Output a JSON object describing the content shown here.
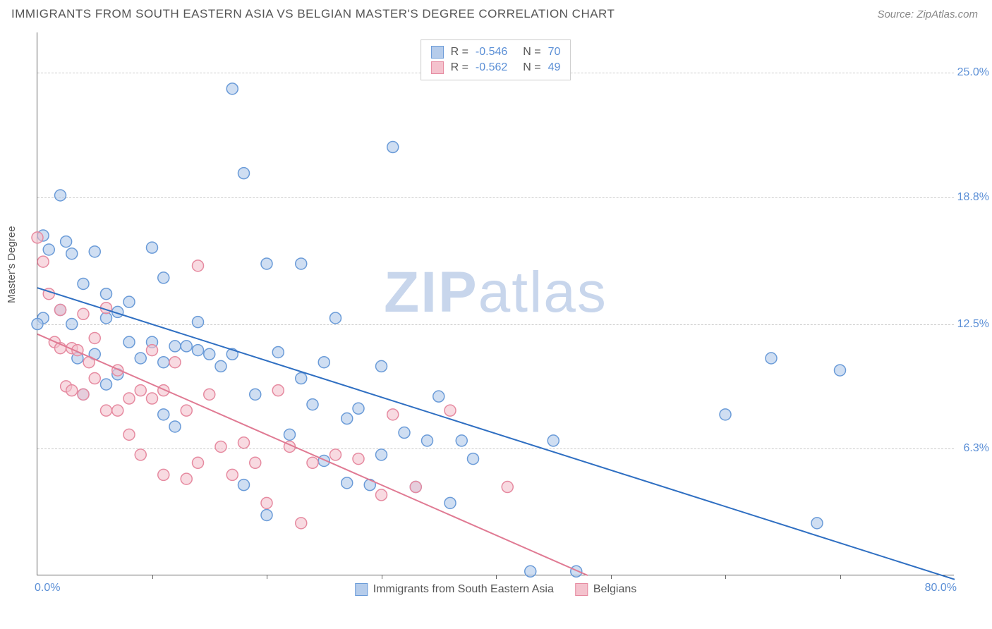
{
  "header": {
    "title": "IMMIGRANTS FROM SOUTH EASTERN ASIA VS BELGIAN MASTER'S DEGREE CORRELATION CHART",
    "source": "Source: ZipAtlas.com"
  },
  "chart": {
    "type": "scatter",
    "ylabel": "Master's Degree",
    "xlim": [
      0,
      80
    ],
    "ylim": [
      0,
      27
    ],
    "x_axis_labels": {
      "left": "0.0%",
      "right": "80.0%"
    },
    "y_ticks": [
      {
        "value": 6.3,
        "label": "6.3%"
      },
      {
        "value": 12.5,
        "label": "12.5%"
      },
      {
        "value": 18.8,
        "label": "18.8%"
      },
      {
        "value": 25.0,
        "label": "25.0%"
      }
    ],
    "x_ticks": [
      10,
      20,
      30,
      40,
      50,
      60,
      70
    ],
    "background_color": "#ffffff",
    "grid_color": "#cccccc",
    "axis_color": "#666666",
    "tick_label_color": "#5b8fd6",
    "marker_radius": 8,
    "marker_stroke_width": 1.5,
    "trend_line_width": 2,
    "watermark": "ZIPatlas",
    "watermark_color": "#c8d6ec",
    "series": [
      {
        "name": "Immigrants from South Eastern Asia",
        "fill": "#b5cceb",
        "stroke": "#6a9bd8",
        "fill_opacity": 0.65,
        "R": "-0.546",
        "N": "70",
        "trend": {
          "x1": 0,
          "y1": 14.3,
          "x2": 80,
          "y2": -0.2,
          "color": "#2f6fc2"
        },
        "points": [
          [
            0.5,
            16.9
          ],
          [
            0.5,
            12.8
          ],
          [
            0,
            12.5
          ],
          [
            1,
            16.2
          ],
          [
            2,
            18.9
          ],
          [
            2.5,
            16.6
          ],
          [
            2,
            13.2
          ],
          [
            3,
            16.0
          ],
          [
            3,
            12.5
          ],
          [
            3.5,
            10.8
          ],
          [
            4,
            14.5
          ],
          [
            4,
            9.0
          ],
          [
            5,
            16.1
          ],
          [
            5,
            11.0
          ],
          [
            6,
            14.0
          ],
          [
            6,
            12.8
          ],
          [
            7,
            13.1
          ],
          [
            7,
            10.0
          ],
          [
            8,
            13.6
          ],
          [
            8,
            11.6
          ],
          [
            9,
            10.8
          ],
          [
            10,
            16.3
          ],
          [
            10,
            11.6
          ],
          [
            11,
            14.8
          ],
          [
            11,
            10.6
          ],
          [
            12,
            11.4
          ],
          [
            12,
            7.4
          ],
          [
            13,
            11.4
          ],
          [
            14,
            12.6
          ],
          [
            14,
            11.2
          ],
          [
            15,
            11.0
          ],
          [
            16,
            10.4
          ],
          [
            17,
            24.2
          ],
          [
            17,
            11.0
          ],
          [
            18,
            20.0
          ],
          [
            18,
            4.5
          ],
          [
            20,
            3.0
          ],
          [
            20,
            15.5
          ],
          [
            21,
            11.1
          ],
          [
            22,
            7.0
          ],
          [
            23,
            9.8
          ],
          [
            23,
            15.5
          ],
          [
            24,
            8.5
          ],
          [
            25,
            10.6
          ],
          [
            25,
            5.7
          ],
          [
            26,
            12.8
          ],
          [
            27,
            7.8
          ],
          [
            27,
            4.6
          ],
          [
            28,
            8.3
          ],
          [
            29,
            4.5
          ],
          [
            30,
            10.4
          ],
          [
            30,
            6.0
          ],
          [
            31,
            21.3
          ],
          [
            32,
            7.1
          ],
          [
            33,
            4.4
          ],
          [
            34,
            6.7
          ],
          [
            35,
            8.9
          ],
          [
            36,
            3.6
          ],
          [
            37,
            6.7
          ],
          [
            38,
            5.8
          ],
          [
            43,
            0.2
          ],
          [
            45,
            6.7
          ],
          [
            47,
            0.2
          ],
          [
            60,
            8.0
          ],
          [
            64,
            10.8
          ],
          [
            68,
            2.6
          ],
          [
            70,
            10.2
          ],
          [
            11,
            8.0
          ],
          [
            19,
            9.0
          ],
          [
            6,
            9.5
          ]
        ]
      },
      {
        "name": "Belgians",
        "fill": "#f4c2cd",
        "stroke": "#e68aa0",
        "fill_opacity": 0.6,
        "R": "-0.562",
        "N": "49",
        "trend": {
          "x1": 0,
          "y1": 12.0,
          "x2": 48,
          "y2": 0,
          "color": "#e07a93"
        },
        "points": [
          [
            0,
            16.8
          ],
          [
            0.5,
            15.6
          ],
          [
            1,
            14.0
          ],
          [
            1.5,
            11.6
          ],
          [
            2,
            11.3
          ],
          [
            2,
            13.2
          ],
          [
            2.5,
            9.4
          ],
          [
            3,
            9.2
          ],
          [
            3,
            11.3
          ],
          [
            3.5,
            11.2
          ],
          [
            4,
            13.0
          ],
          [
            4,
            9.0
          ],
          [
            4.5,
            10.6
          ],
          [
            5,
            11.8
          ],
          [
            5,
            9.8
          ],
          [
            6,
            13.3
          ],
          [
            6,
            8.2
          ],
          [
            7,
            10.2
          ],
          [
            7,
            8.2
          ],
          [
            8,
            8.8
          ],
          [
            8,
            7.0
          ],
          [
            9,
            9.2
          ],
          [
            9,
            6.0
          ],
          [
            10,
            11.2
          ],
          [
            10,
            8.8
          ],
          [
            11,
            9.2
          ],
          [
            11,
            5.0
          ],
          [
            12,
            10.6
          ],
          [
            13,
            8.2
          ],
          [
            13,
            4.8
          ],
          [
            14,
            15.4
          ],
          [
            14,
            5.6
          ],
          [
            15,
            9.0
          ],
          [
            16,
            6.4
          ],
          [
            17,
            5.0
          ],
          [
            18,
            6.6
          ],
          [
            19,
            5.6
          ],
          [
            20,
            3.6
          ],
          [
            21,
            9.2
          ],
          [
            22,
            6.4
          ],
          [
            23,
            2.6
          ],
          [
            24,
            5.6
          ],
          [
            26,
            6.0
          ],
          [
            28,
            5.8
          ],
          [
            30,
            4.0
          ],
          [
            31,
            8.0
          ],
          [
            33,
            4.4
          ],
          [
            36,
            8.2
          ],
          [
            41,
            4.4
          ]
        ]
      }
    ]
  },
  "bottom_legend": [
    {
      "label": "Immigrants from South Eastern Asia",
      "fill": "#b5cceb",
      "stroke": "#6a9bd8"
    },
    {
      "label": "Belgians",
      "fill": "#f4c2cd",
      "stroke": "#e68aa0"
    }
  ]
}
